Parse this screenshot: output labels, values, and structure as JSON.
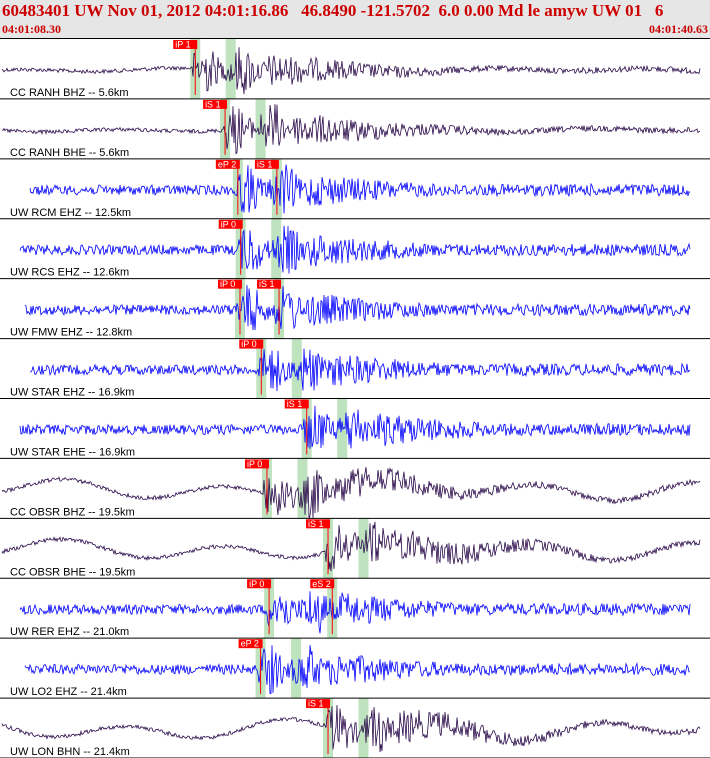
{
  "header": {
    "title": "60483401 UW Nov 01, 2012 04:01:16.86   46.8490 -121.5702  6.0 0.00 Md le amyw UW 01   6",
    "start_time": "04:01:08.30",
    "end_time": "04:01:40.63"
  },
  "colors": {
    "header_text": "#cc0000",
    "trace_blue": "#0000ff",
    "trace_purple": "#2a0a4a",
    "pick_red": "#ff0000",
    "window_green": "#bfe3bf",
    "separator": "#000000"
  },
  "traces": [
    {
      "label": "CC RANH BHZ -- 5.6km",
      "color": "purple",
      "picks": [
        {
          "text": "iP 1",
          "t": 0.275
        }
      ]
    },
    {
      "label": "CC RANH BHE -- 5.6km",
      "color": "purple",
      "picks": [
        {
          "text": "iS 1",
          "t": 0.317
        }
      ]
    },
    {
      "label": "UW RCM EHZ -- 12.5km",
      "color": "blue",
      "picks": [
        {
          "text": "eP 2",
          "t": 0.335
        },
        {
          "text": "iS 1",
          "t": 0.39
        }
      ]
    },
    {
      "label": "UW RCS EHZ -- 12.6km",
      "color": "blue",
      "picks": [
        {
          "text": "iP 0",
          "t": 0.339
        }
      ]
    },
    {
      "label": "UW FMW EHZ -- 12.8km",
      "color": "blue",
      "picks": [
        {
          "text": "iP 0",
          "t": 0.338
        },
        {
          "text": "iS 1",
          "t": 0.393
        }
      ]
    },
    {
      "label": "UW STAR EHZ -- 16.9km",
      "color": "blue",
      "picks": [
        {
          "text": "iP 0",
          "t": 0.368
        }
      ]
    },
    {
      "label": "UW STAR EHE -- 16.9km",
      "color": "blue",
      "picks": [
        {
          "text": "iS 1",
          "t": 0.432
        }
      ]
    },
    {
      "label": "CC OBSR BHZ -- 19.5km",
      "color": "purple",
      "picks": [
        {
          "text": "iP 0",
          "t": 0.376
        }
      ]
    },
    {
      "label": "CC OBSR BHE -- 19.5km",
      "color": "purple",
      "picks": [
        {
          "text": "iS 1",
          "t": 0.462
        }
      ]
    },
    {
      "label": "UW RER EHZ -- 21.0km",
      "color": "blue",
      "picks": [
        {
          "text": "iP 0",
          "t": 0.379
        },
        {
          "text": "eS 2",
          "t": 0.468
        }
      ]
    },
    {
      "label": "UW LO2 EHZ -- 21.4km",
      "color": "blue",
      "picks": [
        {
          "text": "eP 2",
          "t": 0.367
        }
      ]
    },
    {
      "label": "UW LON BHN -- 21.4km",
      "color": "purple",
      "picks": [
        {
          "text": "iS 1",
          "t": 0.462
        }
      ]
    }
  ]
}
